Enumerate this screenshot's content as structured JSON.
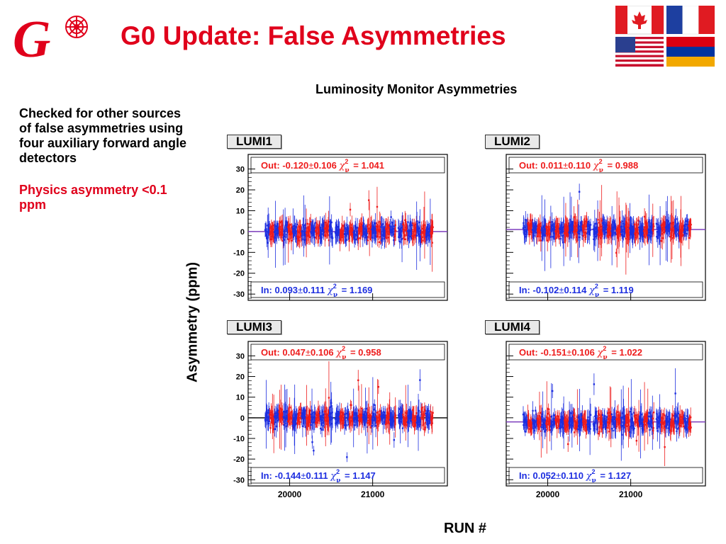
{
  "header": {
    "title": "G0 Update: False Asymmetries",
    "logo_letter": "G"
  },
  "sidebar": {
    "text1": "Checked for other sources of false asymmetries using four auxiliary forward angle detectors",
    "text2": "Physics asymmetry <0.1 ppm"
  },
  "colors": {
    "out": "#ee1c1c",
    "in": "#1d2ee0",
    "title": "#e0001b",
    "fit_line": "#7d3dbd"
  },
  "chart_data": {
    "type": "scatter",
    "title": "Luminosity Monitor Asymmetries",
    "ylabel": "Asymmetry (ppm)",
    "xlabel": "RUN #",
    "ylim": [
      -33,
      37
    ],
    "xlim": [
      19500,
      21900
    ],
    "yticks": [
      "30",
      "20",
      "10",
      "0",
      "-10",
      "-20",
      "-30"
    ],
    "xticks": [
      "20000",
      "21000"
    ],
    "run_blocks": [
      [
        19705,
        20520
      ],
      [
        20550,
        21280
      ],
      [
        21310,
        21730
      ]
    ],
    "panels": [
      {
        "label": "LUMI1",
        "out": {
          "label": "Out:",
          "mean": "-0.120",
          "err": "0.106",
          "chi2": "= 1.041"
        },
        "in": {
          "label": "In:",
          "mean": "0.093",
          "err": "0.111",
          "chi2": "= 1.169"
        },
        "fit": 0.0
      },
      {
        "label": "LUMI2",
        "out": {
          "label": "Out:",
          "mean": "0.011",
          "err": "0.110",
          "chi2": "= 0.988"
        },
        "in": {
          "label": "In:",
          "mean": "-0.102",
          "err": "0.114",
          "chi2": "= 1.119"
        },
        "fit": 1.0
      },
      {
        "label": "LUMI3",
        "out": {
          "label": "Out:",
          "mean": "0.047",
          "err": "0.106",
          "chi2": "= 0.958"
        },
        "in": {
          "label": "In:",
          "mean": "-0.144",
          "err": "0.111",
          "chi2": "= 1.147"
        },
        "fit": 0.0
      },
      {
        "label": "LUMI4",
        "out": {
          "label": "Out:",
          "mean": "-0.151",
          "err": "0.106",
          "chi2": "= 1.022"
        },
        "in": {
          "label": "In:",
          "mean": "0.052",
          "err": "0.110",
          "chi2": "= 1.127"
        },
        "fit": -2.0
      }
    ],
    "chi_symbol": "χ",
    "chi_sup": "2",
    "chi_sub": "ν",
    "pm": "±"
  }
}
